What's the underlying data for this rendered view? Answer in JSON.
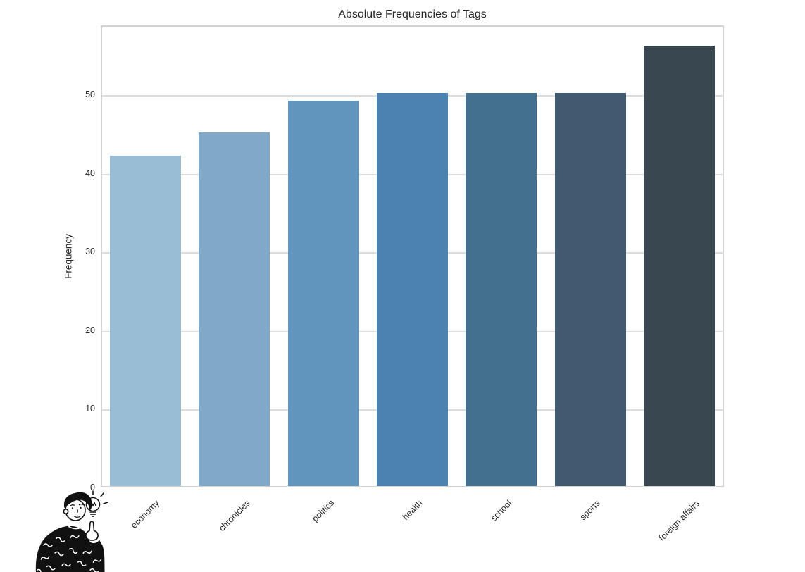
{
  "chart_data": {
    "type": "bar",
    "title": "Absolute Frequencies of Tags",
    "xlabel": "",
    "ylabel": "Frequency",
    "categories": [
      "economy",
      "chronicles",
      "politics",
      "health",
      "school",
      "sports",
      "foreign affairs"
    ],
    "values": [
      42,
      45,
      49,
      50,
      50,
      50,
      56
    ],
    "bar_colors": [
      "#9abdd6",
      "#7fa8c9",
      "#6195be",
      "#4a83b2",
      "#44708f",
      "#415a70",
      "#394750"
    ],
    "ylim": [
      0,
      58.8
    ],
    "yticks": [
      0,
      10,
      20,
      30,
      40,
      50
    ],
    "grid": true,
    "legend_position": "none",
    "background_color": "#ffffff",
    "grid_color": "#dcdcdc",
    "spine_color": "#d2d2d2",
    "text_color": "#262626",
    "x_tick_rotation_deg": 45
  },
  "illustration": {
    "description": "cartoon person in a black patterned sweater pointing up at a glowing lightbulb",
    "position": "bottom-left"
  }
}
